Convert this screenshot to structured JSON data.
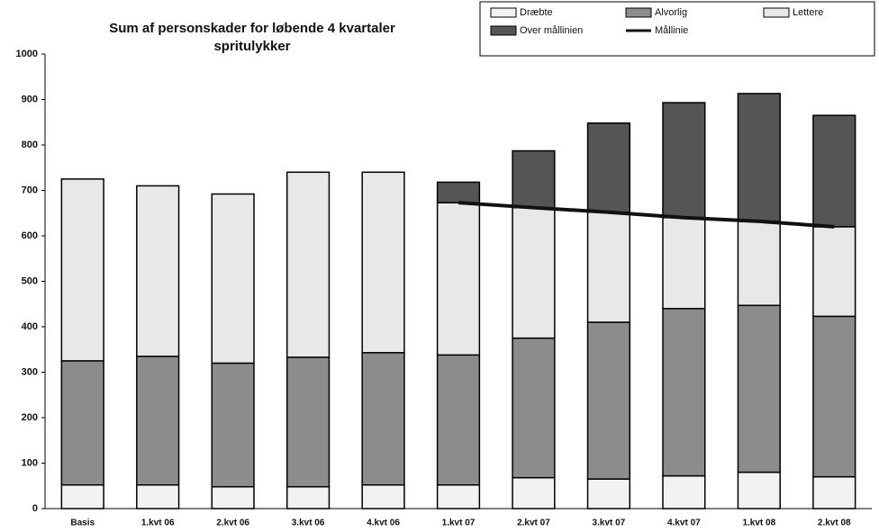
{
  "chart_data": {
    "type": "stacked_bar_line",
    "title": [
      "Sum af personskader for løbende 4 kvartaler",
      "spritulykker"
    ],
    "categories": [
      "Basis",
      "1.kvt 06",
      "2.kvt 06",
      "3.kvt 06",
      "4.kvt 06",
      "1.kvt 07",
      "2.kvt 07",
      "3.kvt 07",
      "4.kvt 07",
      "1.kvt 08",
      "2.kvt 08"
    ],
    "series": [
      {
        "name": "Dræbte",
        "color": "#f2f2f2",
        "values": [
          52,
          52,
          48,
          48,
          52,
          52,
          68,
          65,
          72,
          80,
          70
        ]
      },
      {
        "name": "Alvorlig",
        "color": "#8c8c8c",
        "values": [
          273,
          283,
          272,
          285,
          291,
          286,
          307,
          345,
          368,
          367,
          353
        ]
      },
      {
        "name": "Lettere",
        "color": "#e8e8e8",
        "values": [
          400,
          375,
          372,
          407,
          397,
          335,
          287,
          242,
          200,
          185,
          197
        ]
      },
      {
        "name": "Over mållinien",
        "color": "#555555",
        "values": [
          0,
          0,
          0,
          0,
          0,
          45,
          125,
          196,
          253,
          281,
          245
        ]
      },
      {
        "name": "Mållinie",
        "color": "#111111",
        "kind": "line",
        "values": [
          null,
          null,
          null,
          null,
          null,
          673,
          662,
          652,
          640,
          632,
          620
        ]
      }
    ],
    "ylim": [
      0,
      1000
    ],
    "yticks": [
      0,
      100,
      200,
      300,
      400,
      500,
      600,
      700,
      800,
      900,
      1000
    ],
    "grid": false
  }
}
